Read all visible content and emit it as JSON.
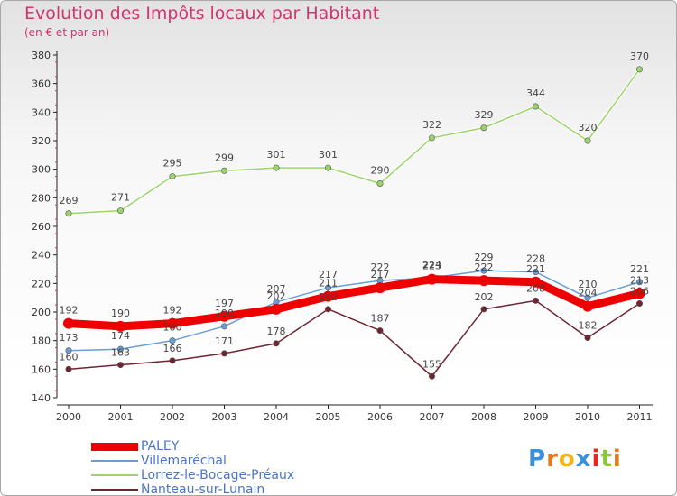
{
  "chart_data": {
    "type": "line",
    "title": "Evolution des Impôts locaux par Habitant",
    "subtitle": "(en € et par an)",
    "xlabel": "",
    "ylabel": "",
    "ylim": [
      140,
      380
    ],
    "yticks": [
      140,
      160,
      180,
      200,
      220,
      240,
      260,
      280,
      300,
      320,
      340,
      360,
      380
    ],
    "categories": [
      "2000",
      "2001",
      "2002",
      "2003",
      "2004",
      "2005",
      "2006",
      "2007",
      "2008",
      "2009",
      "2010",
      "2011"
    ],
    "series": [
      {
        "name": "PALEY",
        "color": "#ee0000",
        "values": [
          192,
          190,
          192,
          197,
          202,
          211,
          217,
          223,
          222,
          221,
          204,
          213
        ]
      },
      {
        "name": "Villemaréchal",
        "color": "#6a9dd6",
        "values": [
          173,
          174,
          180,
          190,
          207,
          217,
          222,
          224,
          229,
          228,
          210,
          221
        ]
      },
      {
        "name": "Lorrez-le-Bocage-Préaux",
        "color": "#9bd46a",
        "values": [
          269,
          271,
          295,
          299,
          301,
          301,
          290,
          322,
          329,
          344,
          320,
          370
        ]
      },
      {
        "name": "Nanteau-sur-Lunain",
        "color": "#6e2530",
        "values": [
          160,
          163,
          166,
          171,
          178,
          202,
          187,
          155,
          202,
          208,
          182,
          206
        ]
      }
    ],
    "legend_position": "bottom-left",
    "grid": false
  },
  "logo": {
    "text": "Proxiti",
    "letters": [
      "P",
      "r",
      "o",
      "x",
      "i",
      "t",
      "i"
    ],
    "colors": [
      "#3c8fd9",
      "#e8781e",
      "#f2b51a",
      "#3c8fd9",
      "#e8281e",
      "#8cc63e",
      "#e8781e"
    ]
  }
}
